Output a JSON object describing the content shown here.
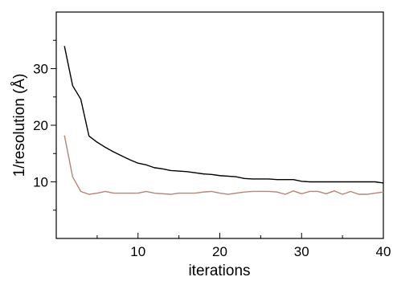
{
  "chart_data": {
    "type": "line",
    "xlabel": "iterations",
    "ylabel": "1/resolution (Å)",
    "xlim": [
      0,
      40
    ],
    "ylim": [
      0,
      40
    ],
    "x_ticks": [
      10,
      20,
      30,
      40
    ],
    "x_tick_labels": [
      "10",
      "20",
      "30",
      "40"
    ],
    "y_ticks": [
      10,
      20,
      30
    ],
    "y_tick_labels": [
      "10",
      "20",
      "30"
    ],
    "grid": false,
    "colors": {
      "series_1": "#000000",
      "series_2": "#b5837c"
    },
    "x": [
      1,
      2,
      3,
      4,
      5,
      6,
      7,
      8,
      9,
      10,
      11,
      12,
      13,
      14,
      15,
      16,
      17,
      18,
      19,
      20,
      21,
      22,
      23,
      24,
      25,
      26,
      27,
      28,
      29,
      30,
      31,
      32,
      33,
      34,
      35,
      36,
      37,
      38,
      39,
      40
    ],
    "series": [
      {
        "values": [
          34.0,
          27.0,
          24.6,
          18.1,
          17.0,
          16.1,
          15.3,
          14.6,
          13.9,
          13.3,
          13.0,
          12.5,
          12.3,
          12.0,
          11.9,
          11.8,
          11.6,
          11.4,
          11.3,
          11.1,
          11.0,
          10.9,
          10.6,
          10.5,
          10.5,
          10.5,
          10.4,
          10.4,
          10.4,
          10.1,
          10.0,
          10.0,
          10.0,
          10.0,
          10.0,
          10.0,
          10.0,
          10.0,
          10.0,
          9.8
        ]
      },
      {
        "values": [
          18.2,
          10.9,
          8.3,
          7.8,
          8.0,
          8.3,
          8.0,
          8.0,
          8.0,
          8.0,
          8.3,
          8.0,
          7.9,
          7.8,
          8.0,
          8.0,
          8.0,
          8.2,
          8.3,
          8.0,
          7.8,
          8.0,
          8.2,
          8.3,
          8.3,
          8.3,
          8.2,
          7.8,
          8.4,
          7.9,
          8.3,
          8.3,
          7.9,
          8.4,
          7.8,
          8.3,
          7.8,
          7.8,
          8.0,
          8.2
        ]
      }
    ]
  }
}
